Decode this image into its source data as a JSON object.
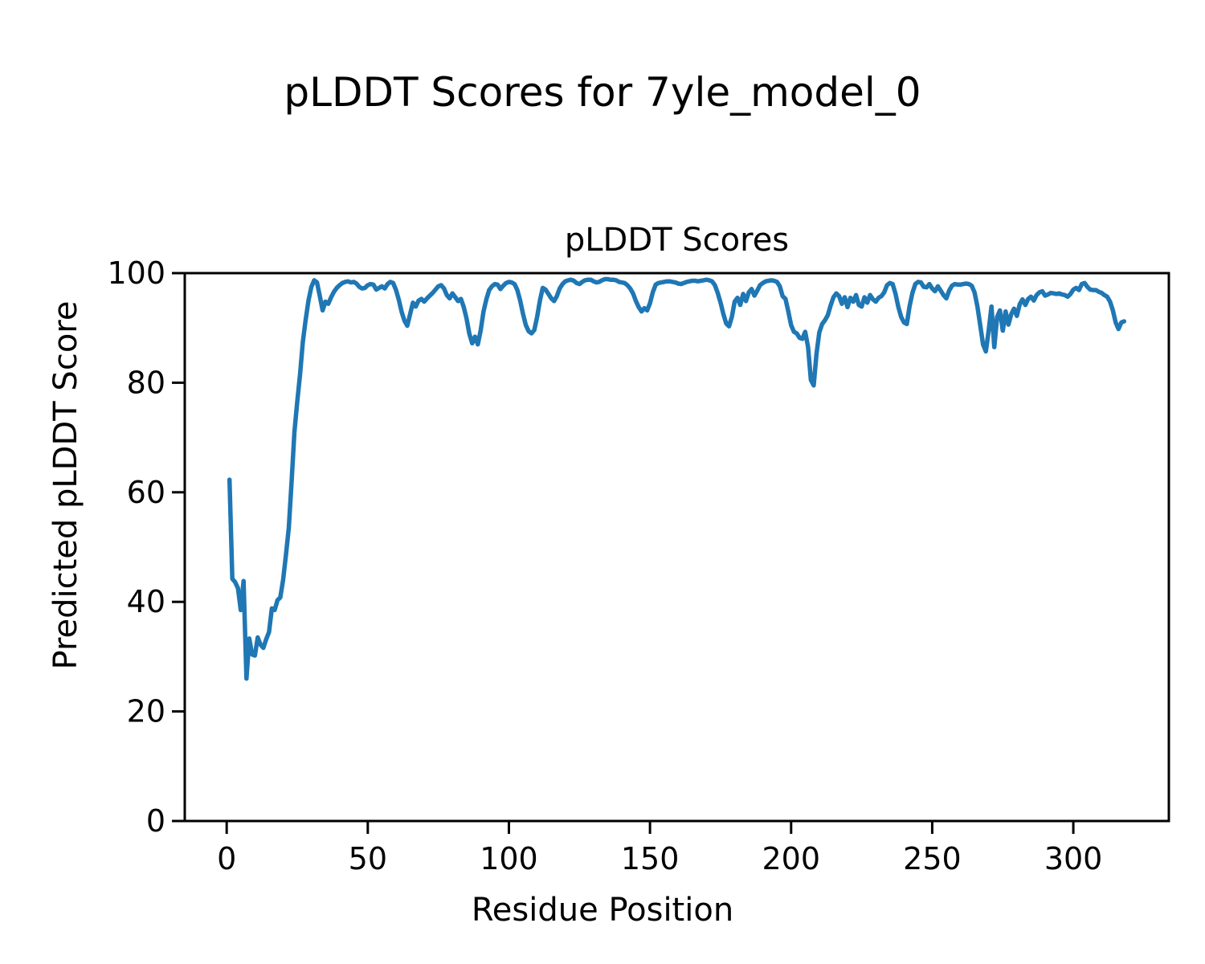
{
  "figure": {
    "title": "pLDDT Scores for 7yle_model_0"
  },
  "chart_data": {
    "type": "line",
    "title": "pLDDT Scores",
    "xlabel": "Residue Position",
    "ylabel": "Predicted pLDDT Score",
    "x_ticks": [
      0,
      50,
      100,
      150,
      200,
      250,
      300
    ],
    "y_ticks": [
      0,
      20,
      40,
      60,
      80,
      100
    ],
    "xlim": [
      -14.85,
      333.85
    ],
    "ylim": [
      0,
      100
    ],
    "grid": false,
    "legend": "none",
    "line_color": "#1f77b4",
    "series": [
      {
        "name": "pLDDT",
        "x_start": 1,
        "x_step": 1,
        "values": [
          62.3,
          44.2,
          43.6,
          42.5,
          38.5,
          43.8,
          26.0,
          33.3,
          30.4,
          30.2,
          33.5,
          32.2,
          31.6,
          33.2,
          34.5,
          38.8,
          38.5,
          40.3,
          40.8,
          44.0,
          48.5,
          53.5,
          62.0,
          71.0,
          76.5,
          81.5,
          87.5,
          91.5,
          95.0,
          97.5,
          98.7,
          98.3,
          95.8,
          93.2,
          94.8,
          94.4,
          95.6,
          96.6,
          97.3,
          97.8,
          98.2,
          98.4,
          98.5,
          98.3,
          98.4,
          98.1,
          97.5,
          97.2,
          97.3,
          97.8,
          98.0,
          97.9,
          97.0,
          97.3,
          97.6,
          97.2,
          98.0,
          98.4,
          98.2,
          96.9,
          95.1,
          92.9,
          91.3,
          90.4,
          92.5,
          94.6,
          93.9,
          95.0,
          95.3,
          94.8,
          95.4,
          95.9,
          96.4,
          97.0,
          97.6,
          97.8,
          97.2,
          96.0,
          95.4,
          96.3,
          95.6,
          94.9,
          95.3,
          93.8,
          91.7,
          88.9,
          87.2,
          88.4,
          87.0,
          89.5,
          93.0,
          95.2,
          96.9,
          97.6,
          98.0,
          97.9,
          97.1,
          97.7,
          98.2,
          98.4,
          98.3,
          98.0,
          96.9,
          95.0,
          92.6,
          90.5,
          89.4,
          89.0,
          89.6,
          92.0,
          95.0,
          97.3,
          97.0,
          96.2,
          95.4,
          94.9,
          95.8,
          97.2,
          98.0,
          98.5,
          98.7,
          98.8,
          98.6,
          98.2,
          98.0,
          98.4,
          98.7,
          98.8,
          98.8,
          98.5,
          98.3,
          98.4,
          98.7,
          98.9,
          98.9,
          98.8,
          98.8,
          98.7,
          98.4,
          98.3,
          98.2,
          97.8,
          97.2,
          96.3,
          94.9,
          93.8,
          93.0,
          93.6,
          93.2,
          94.5,
          96.5,
          97.9,
          98.2,
          98.3,
          98.4,
          98.5,
          98.5,
          98.4,
          98.3,
          98.1,
          98.0,
          98.2,
          98.4,
          98.5,
          98.6,
          98.6,
          98.5,
          98.6,
          98.7,
          98.8,
          98.7,
          98.5,
          97.8,
          96.4,
          94.6,
          92.5,
          90.8,
          90.3,
          92.0,
          94.8,
          95.5,
          94.2,
          96.2,
          94.9,
          96.5,
          97.1,
          95.9,
          96.8,
          97.8,
          98.2,
          98.5,
          98.6,
          98.7,
          98.6,
          98.4,
          97.6,
          95.8,
          95.3,
          93.0,
          90.5,
          89.3,
          89.0,
          88.2,
          88.0,
          89.3,
          86.5,
          80.5,
          79.5,
          85.3,
          89.2,
          90.7,
          91.4,
          92.3,
          94.1,
          95.6,
          96.3,
          95.8,
          94.4,
          95.6,
          93.8,
          95.5,
          94.8,
          96.0,
          94.2,
          93.9,
          95.6,
          94.6,
          96.0,
          95.2,
          94.8,
          95.5,
          95.8,
          96.5,
          97.8,
          98.2,
          98.0,
          96.2,
          93.8,
          92.0,
          91.0,
          90.7,
          94.0,
          96.4,
          98.0,
          98.4,
          98.3,
          97.5,
          97.4,
          98.0,
          97.2,
          96.7,
          97.6,
          96.8,
          96.0,
          95.4,
          96.8,
          97.7,
          98.0,
          97.9,
          97.9,
          98.0,
          98.1,
          98.0,
          97.7,
          96.5,
          94.0,
          90.5,
          87.0,
          85.7,
          89.5,
          93.9,
          86.5,
          92.0,
          93.2,
          89.5,
          93.0,
          90.6,
          92.5,
          93.5,
          92.2,
          94.3,
          95.2,
          94.2,
          95.3,
          95.7,
          95.0,
          96.0,
          96.5,
          96.7,
          95.9,
          96.1,
          96.4,
          96.3,
          96.2,
          96.3,
          96.1,
          96.0,
          95.7,
          96.2,
          97.0,
          97.3,
          96.9,
          98.0,
          98.2,
          97.5,
          97.0,
          96.9,
          96.9,
          96.6,
          96.4,
          96.0,
          95.7,
          94.8,
          93.2,
          91.0,
          89.8,
          91.0,
          91.2
        ]
      }
    ]
  }
}
